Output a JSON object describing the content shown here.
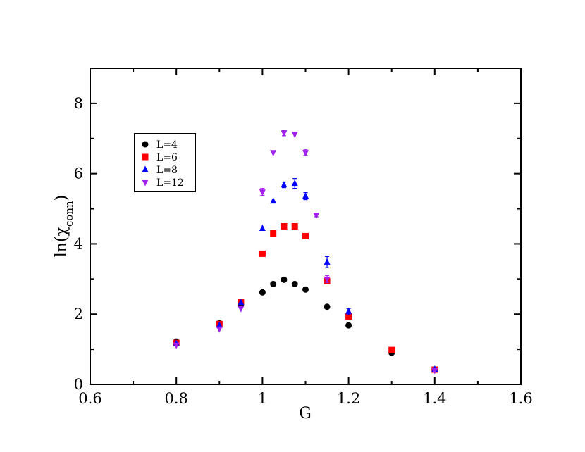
{
  "chart_data": {
    "type": "scatter",
    "xlabel": "G",
    "ylabel_main": "ln(χ",
    "ylabel_sub": "conn",
    "ylabel_close": ")",
    "xlim": [
      0.6,
      1.6
    ],
    "ylim": [
      0,
      9
    ],
    "xticks": [
      0.6,
      0.8,
      1.0,
      1.2,
      1.4,
      1.6
    ],
    "xtick_labels": [
      "0.6",
      "0.8",
      "1",
      "1.2",
      "1.4",
      "1.6"
    ],
    "yticks": [
      0,
      2,
      4,
      6,
      8
    ],
    "ytick_labels": [
      "0",
      "2",
      "4",
      "6",
      "8"
    ],
    "grid": false,
    "legend_position": "upper-left",
    "series": [
      {
        "name": "L=4",
        "marker": "circle",
        "color": "#000000",
        "x": [
          0.8,
          0.9,
          0.95,
          1.0,
          1.025,
          1.05,
          1.075,
          1.1,
          1.15,
          1.2,
          1.3,
          1.4
        ],
        "y": [
          1.22,
          1.74,
          2.28,
          2.62,
          2.86,
          2.98,
          2.86,
          2.7,
          2.21,
          1.68,
          0.9,
          0.42
        ],
        "err": [
          0,
          0,
          0,
          0,
          0,
          0,
          0,
          0,
          0,
          0,
          0,
          0
        ]
      },
      {
        "name": "L=6",
        "marker": "square",
        "color": "#ff0000",
        "x": [
          0.8,
          0.9,
          0.95,
          1.0,
          1.025,
          1.05,
          1.075,
          1.1,
          1.15,
          1.2,
          1.3,
          1.4
        ],
        "y": [
          1.18,
          1.72,
          2.35,
          3.72,
          4.3,
          4.5,
          4.5,
          4.22,
          2.94,
          1.93,
          0.98,
          0.42
        ],
        "err": [
          0,
          0,
          0,
          0,
          0.06,
          0,
          0,
          0,
          0.06,
          0,
          0,
          0
        ]
      },
      {
        "name": "L=8",
        "marker": "triangle-up",
        "color": "#0000ff",
        "x": [
          0.8,
          0.9,
          0.95,
          1.0,
          1.025,
          1.05,
          1.075,
          1.1,
          1.15,
          1.2,
          1.4
        ],
        "y": [
          1.16,
          1.68,
          2.33,
          4.44,
          5.22,
          5.68,
          5.72,
          5.36,
          3.48,
          2.08,
          0.43
        ],
        "err": [
          0,
          0,
          0,
          0,
          0,
          0.08,
          0.14,
          0.1,
          0.16,
          0.08,
          0
        ]
      },
      {
        "name": "L=12",
        "marker": "triangle-down",
        "color": "#a020f0",
        "x": [
          0.8,
          0.9,
          0.95,
          1.0,
          1.025,
          1.05,
          1.075,
          1.1,
          1.125,
          1.15,
          1.4
        ],
        "y": [
          1.12,
          1.58,
          2.16,
          5.48,
          6.6,
          7.16,
          7.12,
          6.6,
          4.82,
          3.0,
          0.4
        ],
        "err": [
          0,
          0,
          0,
          0.1,
          0,
          0.08,
          0,
          0.08,
          0.05,
          0.1,
          0
        ]
      }
    ]
  }
}
